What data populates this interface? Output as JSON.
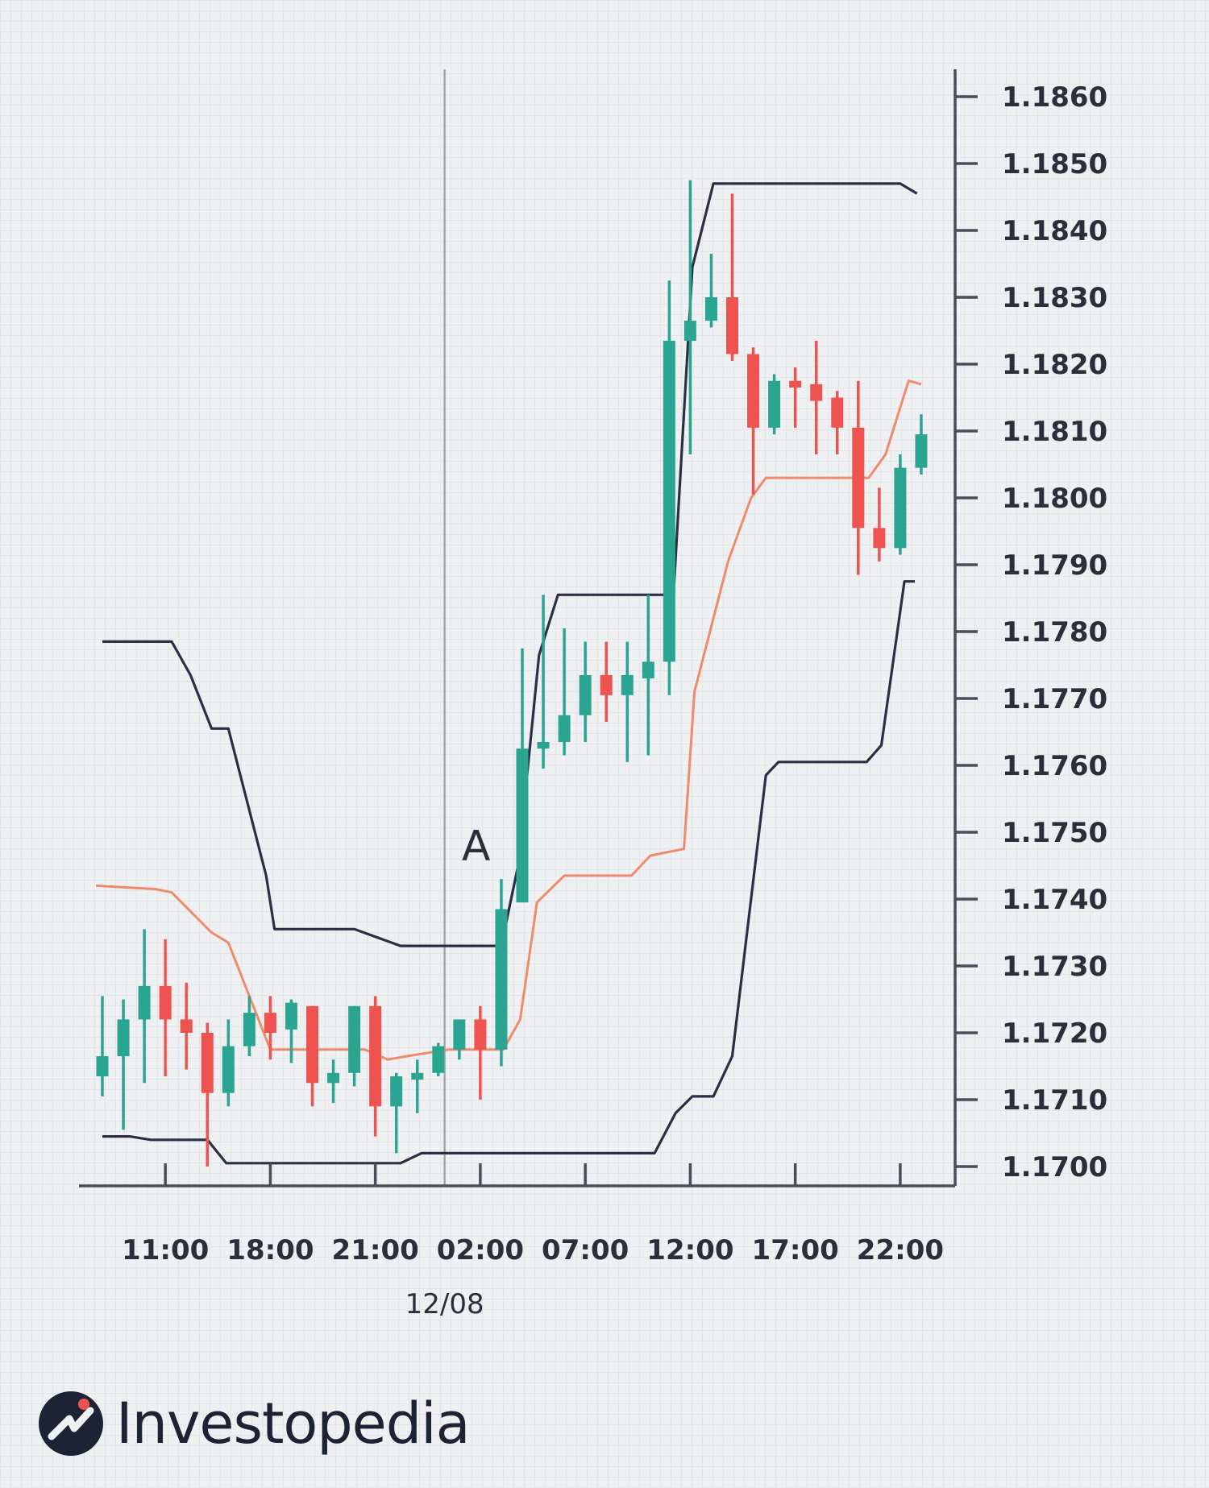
{
  "chart_data": {
    "type": "candlestick",
    "title": "",
    "xlabel": "",
    "ylabel": "",
    "ylim": [
      1.1697,
      1.1862
    ],
    "y_ticks": [
      "1.1700",
      "1.1710",
      "1.1720",
      "1.1730",
      "1.1740",
      "1.1750",
      "1.1760",
      "1.1770",
      "1.1780",
      "1.1790",
      "1.1800",
      "1.1810",
      "1.1820",
      "1.1830",
      "1.1840",
      "1.1850",
      "1.1860"
    ],
    "x_tick_labels": [
      "11:00",
      "18:00",
      "21:00",
      "02:00",
      "07:00",
      "12:00",
      "17:00",
      "22:00"
    ],
    "x_tick_bar_index": [
      3,
      8,
      13,
      18,
      23,
      28,
      33,
      38
    ],
    "date_label": "12/08",
    "date_divider_bar_index": 16.3,
    "annotation": {
      "text": "A",
      "bar_index": 17.8,
      "price": 1.1748
    },
    "colors": {
      "up": "#2aa591",
      "down": "#ef5350",
      "upper_band": "#2a2f45",
      "lower_band": "#2a2f45",
      "middle_line": "#ef8a6c",
      "axis": "#4a4d57",
      "divider": "#a3a7b3"
    },
    "candles": [
      {
        "o": 1.17135,
        "h": 1.17255,
        "l": 1.17105,
        "c": 1.17165
      },
      {
        "o": 1.17165,
        "h": 1.1725,
        "l": 1.17055,
        "c": 1.1722
      },
      {
        "o": 1.1722,
        "h": 1.17355,
        "l": 1.17125,
        "c": 1.1727
      },
      {
        "o": 1.1727,
        "h": 1.1734,
        "l": 1.17135,
        "c": 1.1722
      },
      {
        "o": 1.1722,
        "h": 1.17275,
        "l": 1.17145,
        "c": 1.172
      },
      {
        "o": 1.172,
        "h": 1.17215,
        "l": 1.17,
        "c": 1.1711
      },
      {
        "o": 1.1711,
        "h": 1.1722,
        "l": 1.1709,
        "c": 1.1718
      },
      {
        "o": 1.1718,
        "h": 1.17255,
        "l": 1.17165,
        "c": 1.1723
      },
      {
        "o": 1.1723,
        "h": 1.17255,
        "l": 1.1716,
        "c": 1.172
      },
      {
        "o": 1.17205,
        "h": 1.1725,
        "l": 1.17155,
        "c": 1.17245
      },
      {
        "o": 1.1724,
        "h": 1.1724,
        "l": 1.1709,
        "c": 1.17125
      },
      {
        "o": 1.17125,
        "h": 1.1716,
        "l": 1.17095,
        "c": 1.1714
      },
      {
        "o": 1.1714,
        "h": 1.1724,
        "l": 1.1712,
        "c": 1.1724
      },
      {
        "o": 1.1724,
        "h": 1.17255,
        "l": 1.17045,
        "c": 1.1709
      },
      {
        "o": 1.1709,
        "h": 1.1714,
        "l": 1.1702,
        "c": 1.17135
      },
      {
        "o": 1.1713,
        "h": 1.1716,
        "l": 1.1708,
        "c": 1.1714
      },
      {
        "o": 1.1714,
        "h": 1.17185,
        "l": 1.17135,
        "c": 1.1718
      },
      {
        "o": 1.17175,
        "h": 1.1722,
        "l": 1.1716,
        "c": 1.1722
      },
      {
        "o": 1.1722,
        "h": 1.1724,
        "l": 1.171,
        "c": 1.17175
      },
      {
        "o": 1.17175,
        "h": 1.1743,
        "l": 1.1715,
        "c": 1.17385
      },
      {
        "o": 1.17395,
        "h": 1.17775,
        "l": 1.17395,
        "c": 1.17625
      },
      {
        "o": 1.17625,
        "h": 1.17855,
        "l": 1.17595,
        "c": 1.17635
      },
      {
        "o": 1.17635,
        "h": 1.17805,
        "l": 1.17615,
        "c": 1.17675
      },
      {
        "o": 1.17675,
        "h": 1.17785,
        "l": 1.17635,
        "c": 1.17735
      },
      {
        "o": 1.17735,
        "h": 1.17785,
        "l": 1.17665,
        "c": 1.17705
      },
      {
        "o": 1.17705,
        "h": 1.17785,
        "l": 1.17605,
        "c": 1.17735
      },
      {
        "o": 1.1773,
        "h": 1.17855,
        "l": 1.17615,
        "c": 1.17755
      },
      {
        "o": 1.17755,
        "h": 1.18325,
        "l": 1.17705,
        "c": 1.18235
      },
      {
        "o": 1.18235,
        "h": 1.18475,
        "l": 1.18065,
        "c": 1.18265
      },
      {
        "o": 1.18265,
        "h": 1.18365,
        "l": 1.18255,
        "c": 1.183
      },
      {
        "o": 1.183,
        "h": 1.18455,
        "l": 1.18205,
        "c": 1.18215
      },
      {
        "o": 1.18215,
        "h": 1.18225,
        "l": 1.18005,
        "c": 1.18105
      },
      {
        "o": 1.18105,
        "h": 1.18185,
        "l": 1.18095,
        "c": 1.18175
      },
      {
        "o": 1.18175,
        "h": 1.18195,
        "l": 1.18105,
        "c": 1.18165
      },
      {
        "o": 1.1817,
        "h": 1.18235,
        "l": 1.18065,
        "c": 1.18145
      },
      {
        "o": 1.1815,
        "h": 1.1816,
        "l": 1.18065,
        "c": 1.18105
      },
      {
        "o": 1.18105,
        "h": 1.18175,
        "l": 1.17885,
        "c": 1.17955
      },
      {
        "o": 1.17955,
        "h": 1.18015,
        "l": 1.17905,
        "c": 1.17925
      },
      {
        "o": 1.17925,
        "h": 1.18065,
        "l": 1.17915,
        "c": 1.18045
      },
      {
        "o": 1.18045,
        "h": 1.18125,
        "l": 1.18035,
        "c": 1.18095
      }
    ],
    "upper_band": [
      [
        0,
        1.17785
      ],
      [
        3.3,
        1.17785
      ],
      [
        4.2,
        1.17735
      ],
      [
        5.2,
        1.17655
      ],
      [
        6,
        1.17655
      ],
      [
        7.8,
        1.17435
      ],
      [
        8.2,
        1.17355
      ],
      [
        12,
        1.17355
      ],
      [
        14.2,
        1.1733
      ],
      [
        19,
        1.1733
      ],
      [
        19.8,
        1.1745
      ],
      [
        20.8,
        1.17765
      ],
      [
        21.7,
        1.17855
      ],
      [
        26.5,
        1.17855
      ],
      [
        27.2,
        1.17855
      ],
      [
        28.1,
        1.18345
      ],
      [
        29.1,
        1.1847
      ],
      [
        38,
        1.1847
      ],
      [
        38.8,
        1.18455
      ]
    ],
    "middle_line": [
      [
        -0.3,
        1.1742
      ],
      [
        2.5,
        1.17415
      ],
      [
        3.3,
        1.1741
      ],
      [
        5.2,
        1.1735
      ],
      [
        6,
        1.17335
      ],
      [
        8,
        1.17175
      ],
      [
        12.5,
        1.17175
      ],
      [
        13.6,
        1.1716
      ],
      [
        14.5,
        1.17165
      ],
      [
        16.5,
        1.17175
      ],
      [
        19.1,
        1.17175
      ],
      [
        19.9,
        1.1722
      ],
      [
        20.7,
        1.17395
      ],
      [
        22,
        1.17435
      ],
      [
        25.2,
        1.17435
      ],
      [
        26.1,
        1.17465
      ],
      [
        27.7,
        1.17475
      ],
      [
        28.2,
        1.1771
      ],
      [
        29.8,
        1.17905
      ],
      [
        30.9,
        1.18
      ],
      [
        31.6,
        1.1803
      ],
      [
        36.5,
        1.1803
      ],
      [
        37.3,
        1.18065
      ],
      [
        38.4,
        1.18175
      ],
      [
        39,
        1.1817
      ]
    ],
    "lower_band": [
      [
        0,
        1.17045
      ],
      [
        1.3,
        1.17045
      ],
      [
        2.3,
        1.1704
      ],
      [
        5,
        1.1704
      ],
      [
        5.9,
        1.17005
      ],
      [
        14.2,
        1.17005
      ],
      [
        15.2,
        1.1702
      ],
      [
        26.3,
        1.1702
      ],
      [
        27.3,
        1.1708
      ],
      [
        28.1,
        1.17105
      ],
      [
        29.1,
        1.17105
      ],
      [
        30,
        1.17165
      ],
      [
        31.6,
        1.17585
      ],
      [
        32.2,
        1.17605
      ],
      [
        34,
        1.17605
      ],
      [
        36.4,
        1.17605
      ],
      [
        37.1,
        1.1763
      ],
      [
        38.2,
        1.17875
      ],
      [
        38.7,
        1.17875
      ]
    ]
  },
  "brand": {
    "name": "Investopedia"
  }
}
